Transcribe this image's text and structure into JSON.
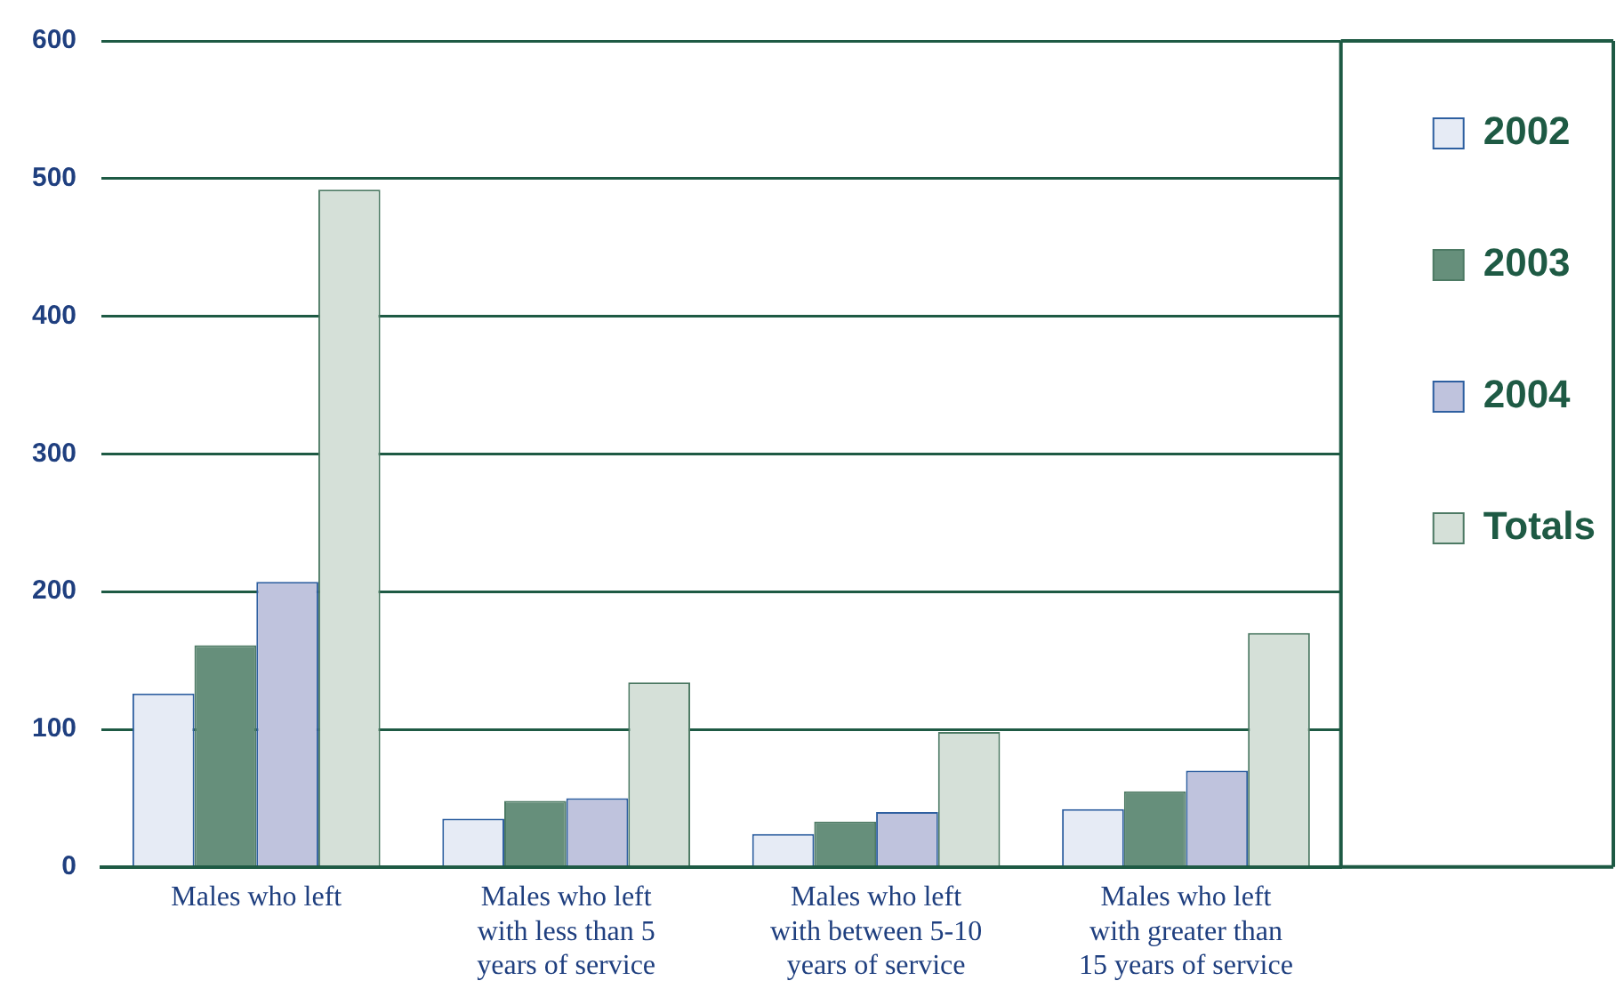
{
  "chart_data": {
    "type": "bar",
    "categories": [
      "Males who left",
      "Males who left with less than 5 years of service",
      "Males who left with between 5-10 years of service",
      "Males who left with greater than 15 years of service"
    ],
    "series": [
      {
        "name": "2002",
        "color": "#e6ebf5",
        "values": [
          126,
          35,
          24,
          42
        ]
      },
      {
        "name": "2003",
        "color": "#668f7b",
        "values": [
          161,
          48,
          33,
          55
        ]
      },
      {
        "name": "2004",
        "color": "#bfc3dd",
        "values": [
          207,
          50,
          40,
          70
        ]
      },
      {
        "name": "Totals",
        "color": "#d5e0d8",
        "values": [
          492,
          134,
          98,
          170
        ]
      }
    ],
    "ylim": [
      0,
      600
    ],
    "yticks": [
      0,
      100,
      200,
      300,
      400,
      500,
      600
    ],
    "grid": "y",
    "legend": "right"
  }
}
